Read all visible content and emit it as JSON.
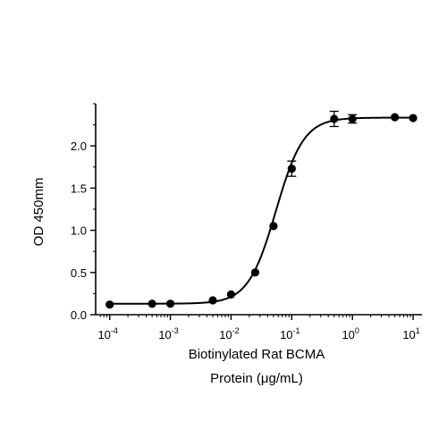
{
  "chart_data": {
    "type": "scatter",
    "xlabel_lines": [
      "Biotinylated Rat BCMA",
      "Protein (μg/mL)"
    ],
    "ylabel": "OD 450mm",
    "x_scale": "log",
    "xlim": [
      6.5e-05,
      14
    ],
    "ylim": [
      0,
      2.5
    ],
    "x_ticks": [
      {
        "value": 0.0001,
        "base": "10",
        "exp": "-4"
      },
      {
        "value": 0.001,
        "base": "10",
        "exp": "-3"
      },
      {
        "value": 0.01,
        "base": "10",
        "exp": "-2"
      },
      {
        "value": 0.1,
        "base": "10",
        "exp": "-1"
      },
      {
        "value": 1,
        "base": "10",
        "exp": "0"
      },
      {
        "value": 10,
        "base": "10",
        "exp": "1"
      }
    ],
    "y_ticks": [
      {
        "value": 0.0,
        "label": "0.0"
      },
      {
        "value": 0.5,
        "label": "0.5"
      },
      {
        "value": 1.0,
        "label": "1.0"
      },
      {
        "value": 1.5,
        "label": "1.5"
      },
      {
        "value": 2.0,
        "label": "2.0"
      }
    ],
    "grid": false,
    "points": [
      {
        "x": 0.0001,
        "y": 0.12,
        "err": 0.0
      },
      {
        "x": 0.0005,
        "y": 0.13,
        "err": 0.0
      },
      {
        "x": 0.001,
        "y": 0.13,
        "err": 0.0
      },
      {
        "x": 0.005,
        "y": 0.17,
        "err": 0.0
      },
      {
        "x": 0.01,
        "y": 0.24,
        "err": 0.0
      },
      {
        "x": 0.025,
        "y": 0.5,
        "err": 0.0
      },
      {
        "x": 0.05,
        "y": 1.05,
        "err": 0.0
      },
      {
        "x": 0.1,
        "y": 1.73,
        "err": 0.09
      },
      {
        "x": 0.5,
        "y": 2.32,
        "err": 0.09
      },
      {
        "x": 1,
        "y": 2.32,
        "err": 0.05
      },
      {
        "x": 5,
        "y": 2.34,
        "err": 0.0
      },
      {
        "x": 10,
        "y": 2.33,
        "err": 0.0
      }
    ],
    "fit": {
      "model": "4PL",
      "bottom": 0.13,
      "top": 2.335,
      "ec50": 0.055,
      "hill": 1.9
    }
  }
}
